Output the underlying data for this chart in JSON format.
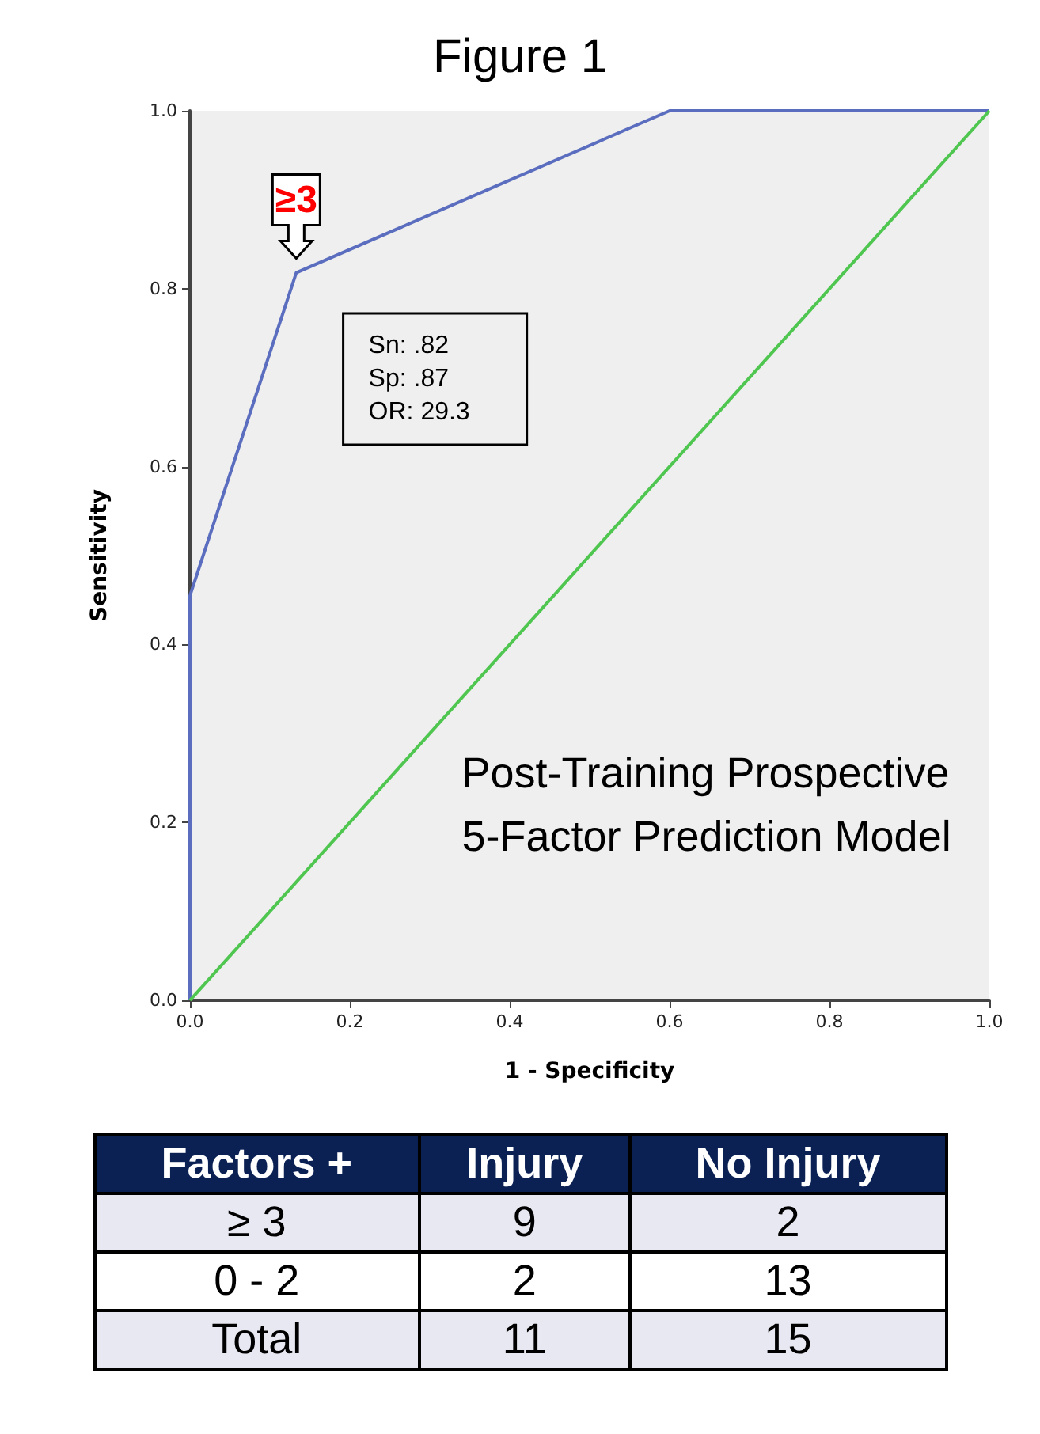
{
  "chart_data": [
    {
      "type": "line",
      "title": "Figure 1",
      "xlabel": "1 - Specificity",
      "ylabel": "Sensitivity",
      "series": [
        {
          "color": "#5a6dbf",
          "x": [
            0,
            0,
            0.133,
            0.6,
            1
          ],
          "values": [
            0,
            0.455,
            0.818,
            1,
            1
          ]
        },
        {
          "color": "#4fc64f",
          "x": [
            0,
            1
          ],
          "values": [
            0,
            1
          ]
        }
      ],
      "xlim": [
        0,
        1
      ],
      "ylim": [
        0,
        1
      ],
      "xticks": [
        {
          "value": 0,
          "label": "0.0"
        },
        {
          "value": 0.2,
          "label": "0.2"
        },
        {
          "value": 0.4,
          "label": "0.4"
        },
        {
          "value": 0.6,
          "label": "0.6"
        },
        {
          "value": 0.8,
          "label": "0.8"
        },
        {
          "value": 1,
          "label": "1.0"
        }
      ],
      "yticks": [
        {
          "value": 0,
          "label": "0.0"
        },
        {
          "value": 0.2,
          "label": "0.2"
        },
        {
          "value": 0.4,
          "label": "0.4"
        },
        {
          "value": 0.6,
          "label": "0.6"
        },
        {
          "value": 0.8,
          "label": "0.8"
        },
        {
          "value": 1,
          "label": "1.0"
        }
      ],
      "grid": false,
      "marker": "none",
      "line_style": "solid",
      "annotations": [
        {
          "text": "≥3",
          "x": 0.133,
          "y": 0.818
        },
        "Sn: .82\nSp: .87\nOR: 29.3",
        "Post-Training Prospective\n5-Factor Prediction Model"
      ]
    },
    {
      "type": "heatmap",
      "ylabel": "Factors +",
      "categories": [
        "Injury",
        "No Injury"
      ],
      "y_categories": [
        "≥ 3",
        "0 - 2",
        "Total"
      ],
      "cells": [
        [
          9,
          2
        ],
        [
          2,
          13
        ],
        [
          11,
          15
        ]
      ],
      "data_labels": true
    }
  ]
}
